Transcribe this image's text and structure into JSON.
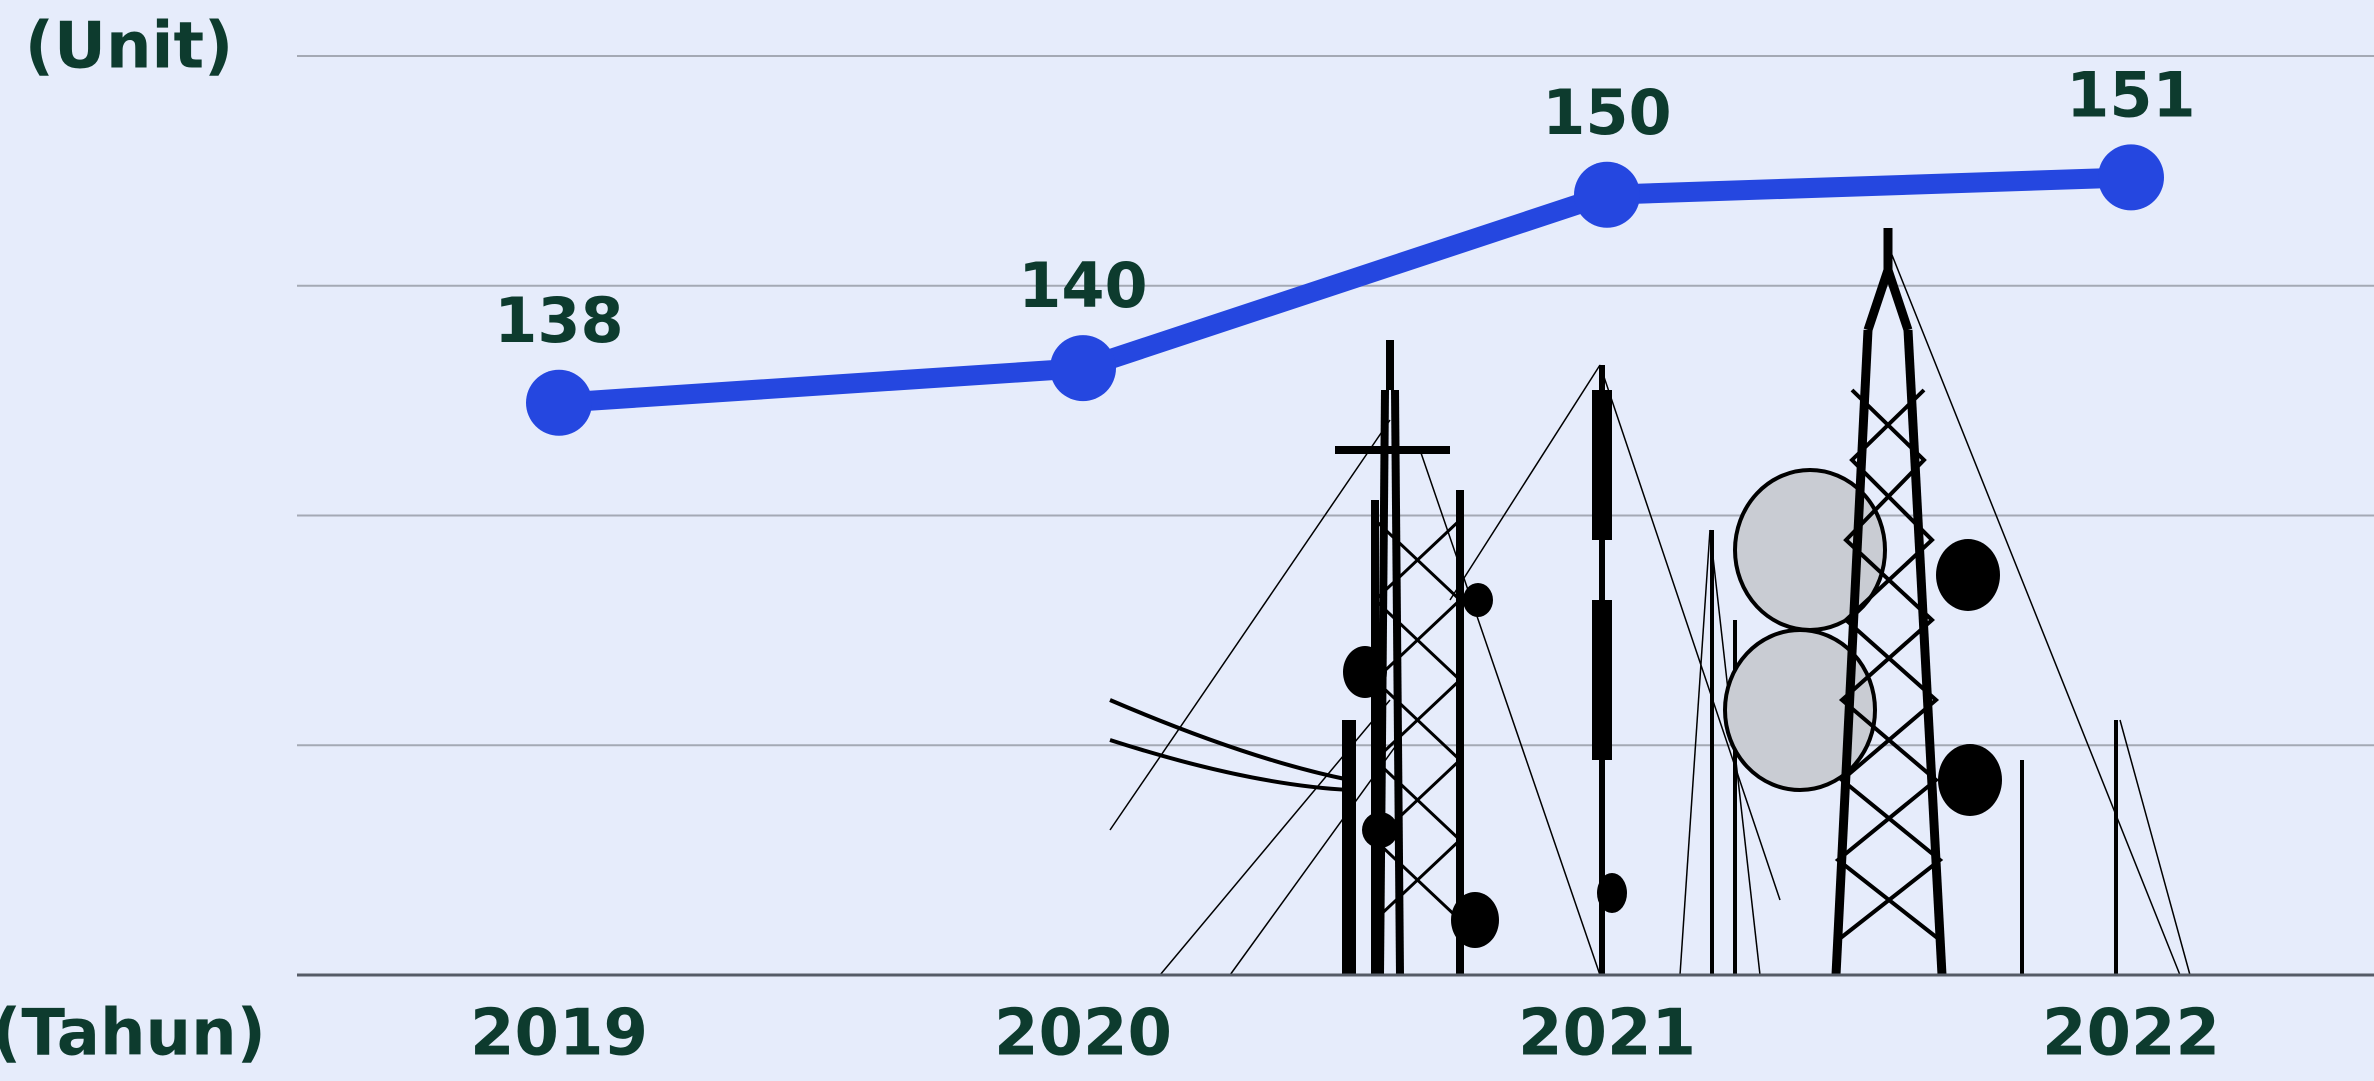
{
  "chart_data": {
    "type": "line",
    "y_label": "(Unit)",
    "x_label": "(Tahun)",
    "categories": [
      "2019",
      "2020",
      "2021",
      "2022"
    ],
    "series": [
      {
        "name": "Unit",
        "color": "#2547e0",
        "values": [
          138,
          140,
          150,
          151
        ]
      }
    ],
    "ylim": [
      105,
      158
    ],
    "yticks": [
      105,
      118.25,
      131.5,
      144.75,
      158
    ],
    "grid": true
  }
}
